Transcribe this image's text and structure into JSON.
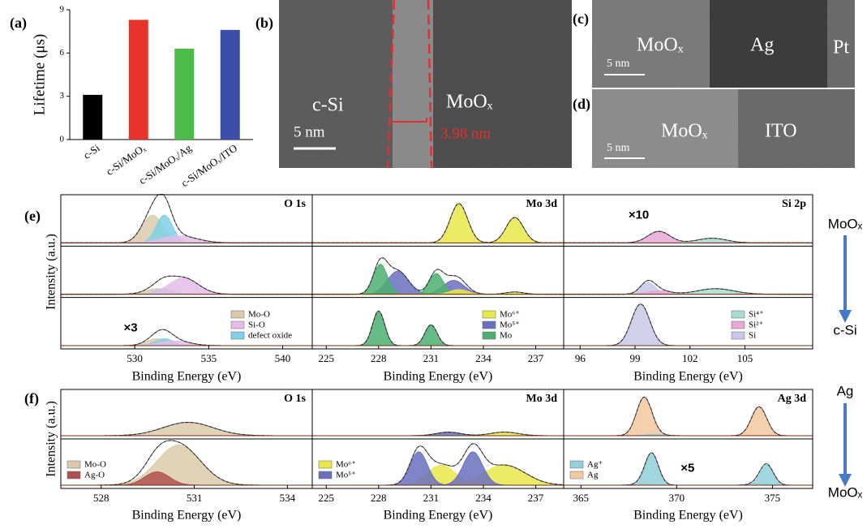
{
  "chart_data": [
    {
      "type": "bar",
      "panel_label": "(a)",
      "ylabel": "Lifetime (μs)",
      "categories": [
        "c-Si",
        "c-Si/MoOₓ",
        "c-Si/MoOₓ/Ag",
        "c-Si/MoOₓ/ITO"
      ],
      "values": [
        3.1,
        8.3,
        6.3,
        7.6
      ],
      "colors": [
        "#000000",
        "#e8332a",
        "#4cbb47",
        "#3b4fa8"
      ],
      "ylim": [
        0,
        9
      ],
      "yticks": [
        0,
        3,
        6,
        9
      ]
    },
    {
      "type": "xps",
      "panel_label": "(e)",
      "ylabel": "Intensity (a.u.)",
      "arrow_top": "MoOₓ",
      "arrow_bottom": "c-Si",
      "panels": [
        {
          "title": "O 1s",
          "xlabel": "Binding Energy (eV)",
          "xlim": [
            525,
            542
          ],
          "xticks": [
            530,
            535,
            540
          ],
          "legend_loc": "lower right",
          "legend": [
            {
              "name": "Mo-O",
              "color": "#dccbab"
            },
            {
              "name": "Si-O",
              "color": "#e3bde8"
            },
            {
              "name": "defect oxide",
              "color": "#7fd0e8"
            }
          ],
          "rows": [
            {
              "components": [
                {
                  "color": "#dccbab",
                  "center": 531.2,
                  "height": 0.6,
                  "width": 0.7
                },
                {
                  "color": "#7fd0e8",
                  "center": 532.0,
                  "height": 0.6,
                  "width": 0.55
                },
                {
                  "color": "#e3bde8",
                  "center": 533.0,
                  "height": 0.15,
                  "width": 1.2
                }
              ]
            },
            {
              "components": [
                {
                  "color": "#dccbab",
                  "center": 531.5,
                  "height": 0.12,
                  "width": 0.8
                },
                {
                  "color": "#7fd0e8",
                  "center": 532.0,
                  "height": 0.12,
                  "width": 0.6
                },
                {
                  "color": "#e3bde8",
                  "center": 533.3,
                  "height": 0.35,
                  "width": 1.0
                }
              ]
            },
            {
              "note": "×3",
              "components": [
                {
                  "color": "#dccbab",
                  "center": 531.5,
                  "height": 0.15,
                  "width": 0.7
                },
                {
                  "color": "#7fd0e8",
                  "center": 532.0,
                  "height": 0.15,
                  "width": 0.6
                },
                {
                  "color": "#e3bde8",
                  "center": 532.7,
                  "height": 0.1,
                  "width": 1.0
                }
              ]
            }
          ]
        },
        {
          "title": "Mo 3d",
          "xlabel": "Binding Energy (eV)",
          "xlim": [
            224.2,
            238.6
          ],
          "xticks": [
            225,
            228,
            231,
            234,
            237
          ],
          "legend_loc": "lower right",
          "legend": [
            {
              "name": "Mo⁶⁺",
              "color": "#e8e84a"
            },
            {
              "name": "Mo⁵⁺",
              "color": "#6a70c0"
            },
            {
              "name": "Mo",
              "color": "#4caf70"
            }
          ],
          "rows": [
            {
              "components": [
                {
                  "color": "#e8e84a",
                  "center": 232.6,
                  "height": 0.85,
                  "width": 0.5
                },
                {
                  "color": "#e8e84a",
                  "center": 235.8,
                  "height": 0.55,
                  "width": 0.5
                }
              ]
            },
            {
              "components": [
                {
                  "color": "#6a70c0",
                  "center": 229.1,
                  "height": 0.5,
                  "width": 0.6
                },
                {
                  "color": "#6a70c0",
                  "center": 232.3,
                  "height": 0.3,
                  "width": 0.6
                },
                {
                  "color": "#4caf70",
                  "center": 228.1,
                  "height": 0.65,
                  "width": 0.4
                },
                {
                  "color": "#4caf70",
                  "center": 231.3,
                  "height": 0.45,
                  "width": 0.4
                },
                {
                  "color": "#e8e84a",
                  "center": 232.6,
                  "height": 0.1,
                  "width": 0.5
                },
                {
                  "color": "#e8e84a",
                  "center": 235.8,
                  "height": 0.05,
                  "width": 0.5
                }
              ]
            },
            {
              "components": [
                {
                  "color": "#4caf70",
                  "center": 228.0,
                  "height": 0.75,
                  "width": 0.35
                },
                {
                  "color": "#4caf70",
                  "center": 231.0,
                  "height": 0.45,
                  "width": 0.35
                }
              ]
            }
          ]
        },
        {
          "title": "Si 2p",
          "xlabel": "Binding Energy (eV)",
          "xlim": [
            95.1,
            108.7
          ],
          "xticks": [
            96,
            99,
            102,
            105
          ],
          "legend_loc": "lower right",
          "legend": [
            {
              "name": "Si⁴⁺",
              "color": "#a8dcd0"
            },
            {
              "name": "Si²⁺",
              "color": "#e8a8d8"
            },
            {
              "name": "Si",
              "color": "#c8c8e8"
            }
          ],
          "rows": [
            {
              "note": "×10",
              "components": [
                {
                  "color": "#e8a8d8",
                  "center": 100.3,
                  "height": 0.25,
                  "width": 0.6
                },
                {
                  "color": "#a8dcd0",
                  "center": 103.2,
                  "height": 0.1,
                  "width": 0.8
                }
              ]
            },
            {
              "components": [
                {
                  "color": "#c8c8e8",
                  "center": 99.7,
                  "height": 0.25,
                  "width": 0.4
                },
                {
                  "color": "#e8a8d8",
                  "center": 100.3,
                  "height": 0.08,
                  "width": 0.6
                },
                {
                  "color": "#a8dcd0",
                  "center": 103.4,
                  "height": 0.12,
                  "width": 1.0
                }
              ]
            },
            {
              "components": [
                {
                  "color": "#c8c8e8",
                  "center": 99.3,
                  "height": 0.9,
                  "width": 0.5
                }
              ]
            }
          ]
        }
      ]
    },
    {
      "type": "xps",
      "panel_label": "(f)",
      "ylabel": "Intensity (a.u.)",
      "arrow_top": "Ag",
      "arrow_bottom": "MoOₓ",
      "panels": [
        {
          "title": "O 1s",
          "xlabel": "Binding Energy (eV)",
          "xlim": [
            526.7,
            534.8
          ],
          "xticks": [
            528,
            531,
            534
          ],
          "legend_loc": "lower left",
          "legend": [
            {
              "name": "Mo-O",
              "color": "#dccbab"
            },
            {
              "name": "Ag-O",
              "color": "#b05050"
            }
          ],
          "rows": [
            {
              "components": [
                {
                  "color": "#dccbab",
                  "center": 530.8,
                  "height": 0.3,
                  "width": 0.8
                }
              ]
            },
            {
              "components": [
                {
                  "color": "#dccbab",
                  "center": 530.5,
                  "height": 0.9,
                  "width": 0.7
                },
                {
                  "color": "#b05050",
                  "center": 529.8,
                  "height": 0.3,
                  "width": 0.4
                }
              ]
            }
          ]
        },
        {
          "title": "Mo 3d",
          "xlabel": "Binding Energy (eV)",
          "xlim": [
            224.2,
            238.6
          ],
          "xticks": [
            225,
            228,
            231,
            234,
            237
          ],
          "legend_loc": "lower left",
          "legend": [
            {
              "name": "Mo⁶⁺",
              "color": "#e8e84a"
            },
            {
              "name": "Mo⁵⁺",
              "color": "#6a70c0"
            }
          ],
          "rows": [
            {
              "components": [
                {
                  "color": "#6a70c0",
                  "center": 232.0,
                  "height": 0.08,
                  "width": 0.7
                },
                {
                  "color": "#e8e84a",
                  "center": 235.2,
                  "height": 0.08,
                  "width": 0.8
                }
              ]
            },
            {
              "components": [
                {
                  "color": "#e8e84a",
                  "center": 231.6,
                  "height": 0.45,
                  "width": 0.8
                },
                {
                  "color": "#e8e84a",
                  "center": 235.2,
                  "height": 0.45,
                  "width": 1.2
                },
                {
                  "color": "#6a70c0",
                  "center": 230.3,
                  "height": 0.75,
                  "width": 0.5
                },
                {
                  "color": "#6a70c0",
                  "center": 233.4,
                  "height": 0.75,
                  "width": 0.55
                }
              ]
            }
          ]
        },
        {
          "title": "Ag 3d",
          "xlabel": "Binding Energy (eV)",
          "xlim": [
            364.1,
            377.1
          ],
          "xticks": [
            365,
            370,
            375
          ],
          "legend_loc": "lower left",
          "legend": [
            {
              "name": "Ag⁺",
              "color": "#90d0d8"
            },
            {
              "name": "Ag",
              "color": "#f5c8a0"
            }
          ],
          "rows": [
            {
              "components": [
                {
                  "color": "#f5c8a0",
                  "center": 368.3,
                  "height": 0.85,
                  "width": 0.4
                },
                {
                  "color": "#f5c8a0",
                  "center": 374.3,
                  "height": 0.65,
                  "width": 0.4
                },
                {
                  "color": "#90d0d8",
                  "center": 368.8,
                  "height": 0.03,
                  "width": 0.5
                }
              ]
            },
            {
              "note": "×5",
              "components": [
                {
                  "color": "#f5c8a0",
                  "center": 368.3,
                  "height": 0.05,
                  "width": 0.4
                },
                {
                  "color": "#f5c8a0",
                  "center": 374.3,
                  "height": 0.05,
                  "width": 0.4
                },
                {
                  "color": "#90d0d8",
                  "center": 368.7,
                  "height": 0.7,
                  "width": 0.35
                },
                {
                  "color": "#90d0d8",
                  "center": 374.7,
                  "height": 0.45,
                  "width": 0.35
                }
              ]
            }
          ]
        }
      ]
    }
  ],
  "images": [
    {
      "label": "(b)",
      "texts": [
        "c-Si",
        "MoOₓ",
        "5 nm",
        "3.98 nm"
      ]
    },
    {
      "label": "(c)",
      "texts": [
        "MoOₓ",
        "Ag",
        "Pt",
        "5 nm"
      ]
    },
    {
      "label": "(d)",
      "texts": [
        "MoOₓ",
        "ITO",
        "5 nm"
      ]
    }
  ]
}
